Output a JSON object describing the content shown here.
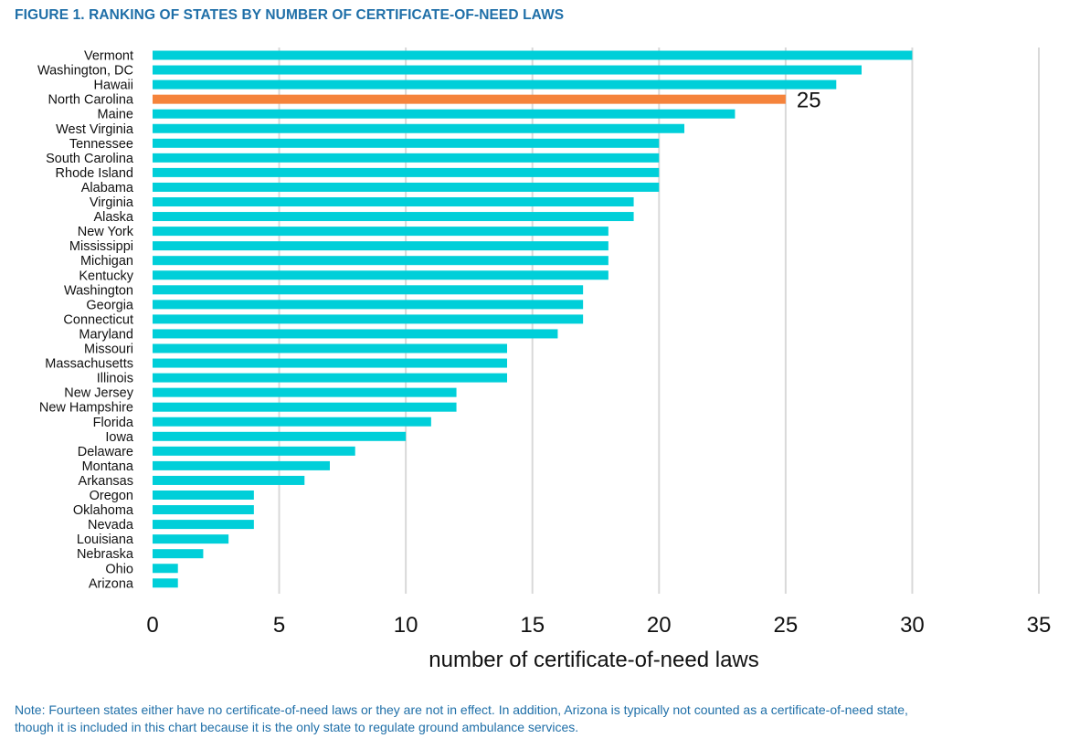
{
  "figure": {
    "title": "FIGURE 1. RANKING OF STATES BY NUMBER OF CERTIFICATE-OF-NEED LAWS",
    "note": "Note: Fourteen states either have no certificate-of-need laws or they are not in effect. In addition, Arizona is typically not counted as a certificate-of-need state, though it is included in this chart because it is the only state to regulate ground ambulance services."
  },
  "chart_data": {
    "type": "bar",
    "orientation": "horizontal",
    "title": "FIGURE 1. RANKING OF STATES BY NUMBER OF CERTIFICATE-OF-NEED LAWS",
    "xlabel": "number of certificate-of-need laws",
    "ylabel": "",
    "xlim": [
      0,
      35
    ],
    "xticks": [
      0,
      5,
      10,
      15,
      20,
      25,
      30,
      35
    ],
    "grid": "vertical",
    "categories": [
      "Vermont",
      "Washington, DC",
      "Hawaii",
      "North Carolina",
      "Maine",
      "West Virginia",
      "Tennessee",
      "South Carolina",
      "Rhode Island",
      "Alabama",
      "Virginia",
      "Alaska",
      "New York",
      "Mississippi",
      "Michigan",
      "Kentucky",
      "Washington",
      "Georgia",
      "Connecticut",
      "Maryland",
      "Missouri",
      "Massachusetts",
      "Illinois",
      "New Jersey",
      "New Hampshire",
      "Florida",
      "Iowa",
      "Delaware",
      "Montana",
      "Arkansas",
      "Oregon",
      "Oklahoma",
      "Nevada",
      "Louisiana",
      "Nebraska",
      "Ohio",
      "Arizona"
    ],
    "values": [
      30,
      28,
      27,
      25,
      23,
      21,
      20,
      20,
      20,
      20,
      19,
      19,
      18,
      18,
      18,
      18,
      17,
      17,
      17,
      16,
      14,
      14,
      14,
      12,
      12,
      11,
      10,
      8,
      7,
      6,
      4,
      4,
      4,
      3,
      2,
      1,
      1
    ],
    "highlight": {
      "category": "North Carolina",
      "label": "25"
    },
    "colors": {
      "bar": "#00cfd9",
      "highlight": "#f5833b",
      "grid": "#d9d9d9"
    }
  }
}
